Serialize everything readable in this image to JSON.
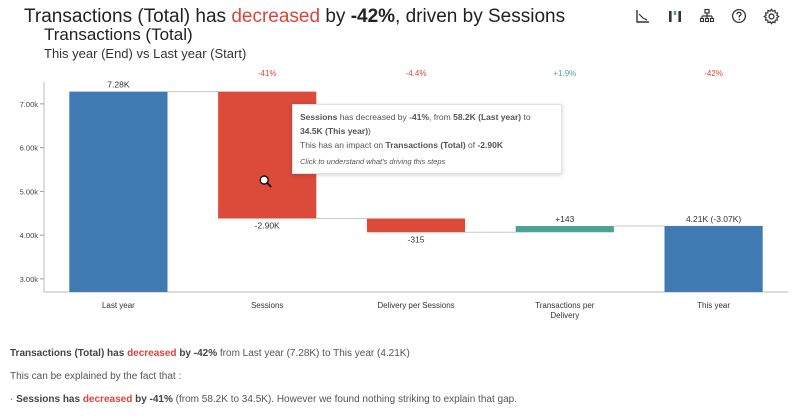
{
  "headline": {
    "prefix": "Transactions (Total) has ",
    "direction": "decreased",
    "middle": " by ",
    "change": "-42%",
    "suffix": ", driven by Sessions"
  },
  "subtitle": "Transactions (Total)",
  "subtitle2": "This year (End) vs Last year (Start)",
  "toolbar": {
    "icons": [
      "chart-type-icon",
      "waterfall-icon",
      "hierarchy-icon",
      "help-icon",
      "settings-icon"
    ]
  },
  "colors": {
    "total": "#3f7ab3",
    "decrease": "#dc4a3a",
    "increase": "#4fa293",
    "neg_text": "#d9453a",
    "pos_text": "#4fa293"
  },
  "chart_data": {
    "type": "waterfall",
    "ylim": [
      2700,
      7500
    ],
    "yticks": [
      3000,
      4000,
      5000,
      6000,
      7000
    ],
    "ytick_labels": [
      "3.00k",
      "4.00k",
      "5.00k",
      "6.00k",
      "7.00k"
    ],
    "categories": [
      "Last year",
      "Sessions",
      "Delivery per Sessions",
      "Transactions per Delivery",
      "This year"
    ],
    "steps": [
      {
        "kind": "total",
        "start": 0,
        "end": 7280,
        "label": "7.28K",
        "pct": ""
      },
      {
        "kind": "decrease",
        "start": 7280,
        "end": 4380,
        "label": "-2.90K",
        "pct": "-41%"
      },
      {
        "kind": "decrease",
        "start": 4380,
        "end": 4065,
        "label": "-315",
        "pct": "-4.4%"
      },
      {
        "kind": "increase",
        "start": 4065,
        "end": 4208,
        "label": "+143",
        "pct": "+1.9%"
      },
      {
        "kind": "total",
        "start": 0,
        "end": 4210,
        "label": "4.21K (-3.07K)",
        "pct": "-42%"
      }
    ]
  },
  "tooltip": {
    "line1_metric": "Sessions",
    "line1_mid": " has decreased by ",
    "line1_pct": "-41%",
    "line1_from": ", from ",
    "line1_old": "58.2K (Last year)",
    "line1_to": " to ",
    "line1_new": "34.5K (This year)",
    "line1_end": ")",
    "line2_pre": "This has an impact on ",
    "line2_metric": "Transactions (Total)",
    "line2_mid": " of ",
    "line2_val": "-2.90K",
    "hint": "Click to understand what's driving this steps"
  },
  "explanation": {
    "p1_metric": "Transactions (Total) has ",
    "p1_dir": "decreased",
    "p1_by": " by -42%",
    "p1_rest": " from Last year (7.28K) to This year (4.21K)",
    "p2": "This can be explained by the fact that :",
    "p3_bullet": "·",
    "p3_metric": "Sessions has ",
    "p3_dir": "decreased",
    "p3_by": " by -41%",
    "p3_rest": " (from 58.2K to 34.5K). However we found nothing striking to explain that gap."
  }
}
